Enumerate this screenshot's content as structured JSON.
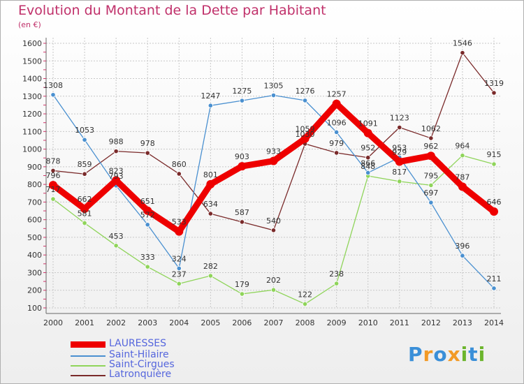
{
  "header": {
    "title": "Evolution du Montant de la Dette par Habitant",
    "unit": "(en €)"
  },
  "brand": {
    "text": "Proxiti",
    "colors": [
      "#3a8fd8",
      "#f29a26",
      "#6cb52d"
    ]
  },
  "chart_data": {
    "type": "line",
    "title": "Evolution du Montant de la Dette par Habitant",
    "subtitle": "(en €)",
    "xlabel": "",
    "ylabel": "",
    "x": [
      "2000",
      "2001",
      "2002",
      "2003",
      "2004",
      "2005",
      "2006",
      "2007",
      "2008",
      "2009",
      "2010",
      "2011",
      "2012",
      "2013",
      "2014"
    ],
    "ylim": [
      100,
      1600
    ],
    "yticks": [
      100,
      200,
      300,
      400,
      500,
      600,
      700,
      800,
      900,
      1000,
      1100,
      1200,
      1300,
      1400,
      1500,
      1600
    ],
    "grid": true,
    "legend_position": "bottom-left",
    "series": [
      {
        "name": "LAURESSES",
        "color": "#ee0000",
        "values": [
          796,
          662,
          823,
          651,
          533,
          801,
          903,
          933,
          1059,
          1257,
          1091,
          929,
          962,
          787,
          646
        ]
      },
      {
        "name": "Saint-Hilaire",
        "color": "#4a90d0",
        "values": [
          1308,
          1053,
          793,
          572,
          324,
          1247,
          1275,
          1305,
          1276,
          1096,
          866,
          953,
          697,
          396,
          211
        ]
      },
      {
        "name": "Saint-Cirgues",
        "color": "#8fd45a",
        "values": [
          717,
          581,
          453,
          333,
          237,
          282,
          179,
          202,
          122,
          238,
          848,
          817,
          795,
          964,
          915
        ]
      },
      {
        "name": "Latronquière",
        "color": "#7a2a2a",
        "values": [
          878,
          859,
          988,
          978,
          860,
          634,
          587,
          540,
          1030,
          979,
          952,
          1123,
          1062,
          1546,
          1319
        ]
      }
    ]
  }
}
